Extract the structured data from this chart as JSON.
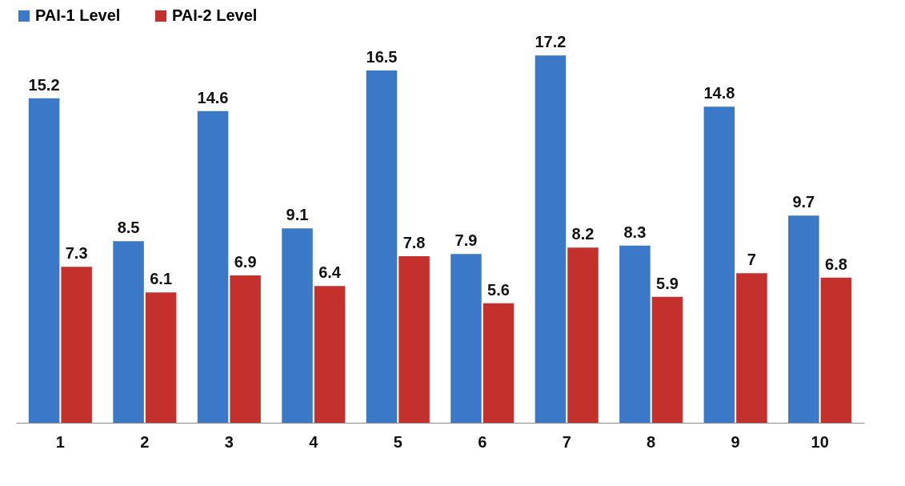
{
  "chart_data": {
    "type": "bar",
    "categories": [
      "1",
      "2",
      "3",
      "4",
      "5",
      "6",
      "7",
      "8",
      "9",
      "10"
    ],
    "series": [
      {
        "name": "PAI-1 Level",
        "color": "#3b78c8",
        "values": [
          15.2,
          8.5,
          14.6,
          9.1,
          16.5,
          7.9,
          17.2,
          8.3,
          14.8,
          9.7
        ]
      },
      {
        "name": "PAI-2 Level",
        "color": "#c4312c",
        "values": [
          7.3,
          6.1,
          6.9,
          6.4,
          7.8,
          5.6,
          8.2,
          5.9,
          7,
          6.8
        ]
      }
    ],
    "data_labels": true,
    "legend": "top",
    "grid": false
  }
}
